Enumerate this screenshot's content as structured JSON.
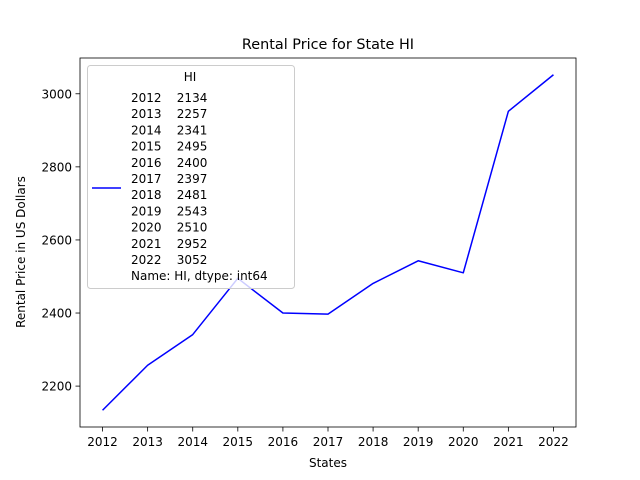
{
  "chart_data": {
    "type": "line",
    "title": "Rental Price for State HI",
    "xlabel": "States",
    "ylabel": "Rental Price in US Dollars",
    "x": [
      2012,
      2013,
      2014,
      2015,
      2016,
      2017,
      2018,
      2019,
      2020,
      2021,
      2022
    ],
    "series": [
      {
        "values": [
          2134,
          2257,
          2341,
          2495,
          2400,
          2397,
          2481,
          2543,
          2510,
          2952,
          3052
        ],
        "color": "#0000ff"
      }
    ],
    "yticks": [
      2200,
      2400,
      2600,
      2800,
      3000
    ],
    "ylim": [
      2088.1,
      3097.9
    ],
    "xlim": [
      2011.5,
      2022.5
    ],
    "grid": false,
    "legend": {
      "placement": "upper-left",
      "title": "HI",
      "lines": [
        "2012    2134",
        "2013    2257",
        "2014    2341",
        "2015    2495",
        "2016    2400",
        "2017    2397",
        "2018    2481",
        "2019    2543",
        "2020    2510",
        "2021    2952",
        "2022    3052",
        "Name: HI, dtype: int64"
      ]
    }
  }
}
